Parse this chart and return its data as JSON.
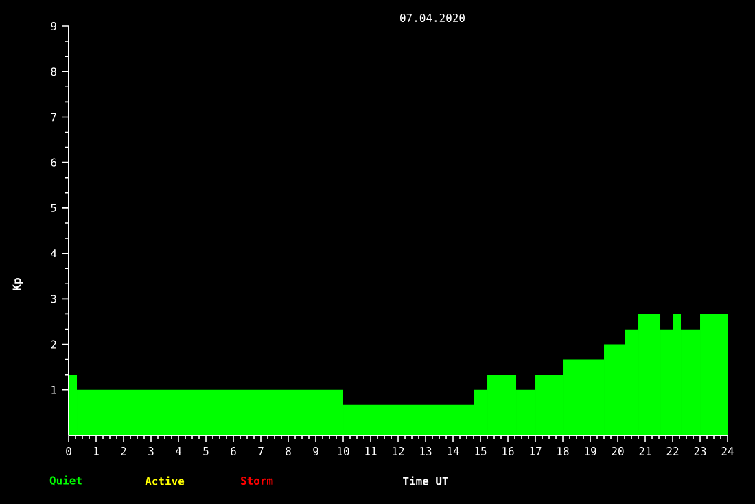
{
  "chart_data": {
    "type": "histogram",
    "title": "07.04.2020",
    "xlabel": "Time UT",
    "ylabel": "Kp",
    "bins": [
      0,
      0.3,
      10,
      14.75,
      15.25,
      16.3,
      17,
      18,
      19.5,
      20.25,
      20.75,
      21.55,
      22,
      22.3,
      23,
      24
    ],
    "values": [
      1.33,
      1,
      0.67,
      1,
      1.33,
      1,
      1.33,
      1.67,
      2,
      2.33,
      2.67,
      2.33,
      2.67,
      2.33,
      2.67
    ],
    "color": "#00ff00",
    "xlim": [
      0,
      24
    ],
    "ylim": [
      0,
      9
    ],
    "xticks": [
      0,
      1,
      2,
      3,
      4,
      5,
      6,
      7,
      8,
      9,
      10,
      11,
      12,
      13,
      14,
      15,
      16,
      17,
      18,
      19,
      20,
      21,
      22,
      23,
      24
    ],
    "yticks": [
      1,
      2,
      3,
      4,
      5,
      6,
      7,
      8,
      9
    ],
    "annotations": [
      "Quiet",
      "Active",
      "Storm"
    ]
  }
}
